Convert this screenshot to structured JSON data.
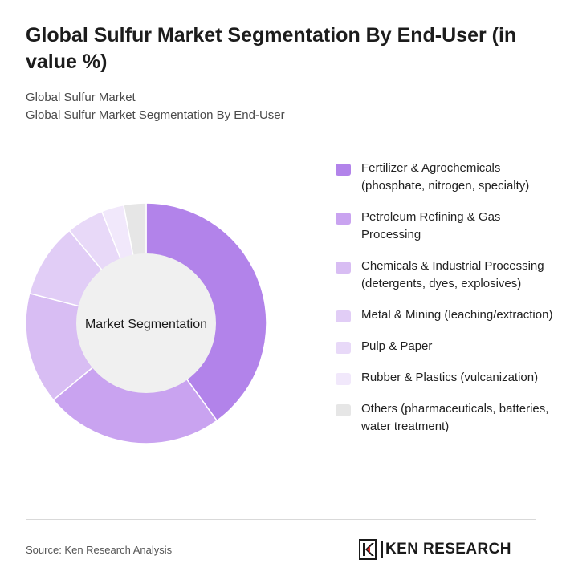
{
  "title": "Global Sulfur Market Segmentation By End-User (in value %)",
  "breadcrumb": [
    "Global Sulfur Market",
    "Global Sulfur Market Segmentation By End-User"
  ],
  "chart_data": {
    "type": "pie",
    "variant": "donut",
    "center_label": "Market Segmentation",
    "categories": [
      "Fertilizer & Agrochemicals (phosphate, nitrogen, specialty)",
      "Petroleum Refining & Gas Processing",
      "Chemicals & Industrial Processing (detergents, dyes, explosives)",
      "Metal & Mining (leaching/extraction)",
      "Pulp & Paper",
      "Rubber & Plastics (vulcanization)",
      "Others (pharmaceuticals, batteries, water treatment)"
    ],
    "values": [
      40,
      24,
      15,
      10,
      5,
      3,
      3
    ],
    "colors": [
      "#b283ea",
      "#c9a3f0",
      "#d8bdf3",
      "#e1cdf6",
      "#e8d9f8",
      "#f1e8fb",
      "#e6e6e6"
    ],
    "legend_position": "right"
  },
  "footer": {
    "source": "Source: Ken Research Analysis",
    "brand": "KEN RESEARCH"
  }
}
